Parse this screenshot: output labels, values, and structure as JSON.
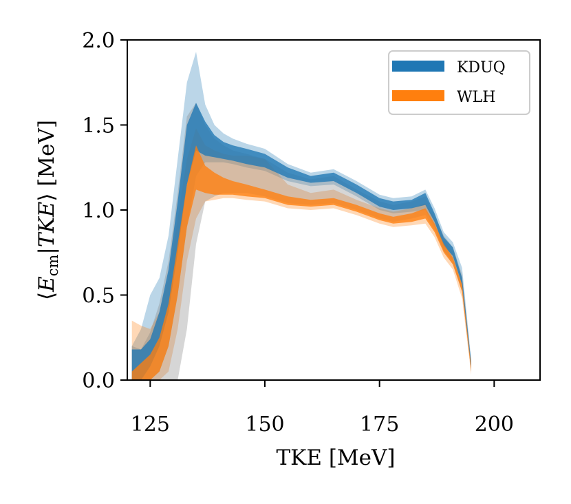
{
  "chart_data": {
    "type": "area",
    "title": "",
    "xlabel": "TKE [MeV]",
    "ylabel": "⟨E_cm|TKE⟩ [MeV]",
    "ylabel_parts": {
      "open": "⟨",
      "var": "E",
      "sub": "cm",
      "bar": "|",
      "cond": "TKE",
      "close": "⟩",
      "unit": " [MeV]"
    },
    "xlim": [
      120,
      210
    ],
    "ylim": [
      0.0,
      2.0
    ],
    "xticks": [
      125,
      150,
      175,
      200
    ],
    "yticks": [
      0.0,
      0.5,
      1.0,
      1.5,
      2.0
    ],
    "xtick_labels": [
      "125",
      "150",
      "175",
      "200"
    ],
    "ytick_labels": [
      "0.0",
      "0.5",
      "1.0",
      "1.5",
      "2.0"
    ],
    "legend_position": "top-right",
    "series": [
      {
        "name": "KDUQ",
        "color": "#1f77b4",
        "x": [
          121,
          123,
          125,
          127,
          129,
          131,
          133,
          135,
          137,
          139,
          141,
          143,
          146,
          150,
          155,
          160,
          165,
          170,
          175,
          178,
          182,
          185,
          187,
          189,
          191,
          193,
          195
        ],
        "inner_upper": [
          0.18,
          0.18,
          0.24,
          0.4,
          0.65,
          1.05,
          1.5,
          1.63,
          1.52,
          1.44,
          1.4,
          1.38,
          1.36,
          1.33,
          1.25,
          1.2,
          1.22,
          1.15,
          1.07,
          1.05,
          1.06,
          1.1,
          0.98,
          0.84,
          0.78,
          0.6,
          0.1
        ],
        "inner_lower": [
          0.0,
          0.0,
          0.08,
          0.2,
          0.4,
          0.75,
          1.15,
          1.35,
          1.32,
          1.31,
          1.3,
          1.29,
          1.27,
          1.25,
          1.19,
          1.16,
          1.17,
          1.1,
          1.02,
          1.0,
          1.01,
          1.03,
          0.93,
          0.79,
          0.73,
          0.56,
          0.06
        ],
        "outer_upper": [
          0.2,
          0.3,
          0.5,
          0.6,
          0.85,
          1.3,
          1.75,
          1.93,
          1.62,
          1.5,
          1.45,
          1.42,
          1.39,
          1.36,
          1.27,
          1.22,
          1.24,
          1.17,
          1.09,
          1.07,
          1.08,
          1.12,
          1.01,
          0.87,
          0.81,
          0.66,
          0.12
        ],
        "outer_lower": [
          0.0,
          0.0,
          0.0,
          0.05,
          0.2,
          0.5,
          0.9,
          1.2,
          1.28,
          1.28,
          1.28,
          1.27,
          1.25,
          1.23,
          1.17,
          1.14,
          1.15,
          1.08,
          1.0,
          0.98,
          0.99,
          1.0,
          0.9,
          0.76,
          0.7,
          0.52,
          0.05
        ]
      },
      {
        "name": "WLH",
        "color": "#ff7f0e",
        "x": [
          121,
          123,
          125,
          127,
          129,
          131,
          133,
          135,
          137,
          139,
          141,
          143,
          146,
          150,
          155,
          160,
          165,
          170,
          175,
          178,
          182,
          185,
          187,
          189,
          191,
          193,
          195
        ],
        "inner_upper": [
          0.05,
          0.1,
          0.15,
          0.25,
          0.45,
          0.8,
          1.15,
          1.38,
          1.26,
          1.22,
          1.19,
          1.17,
          1.15,
          1.12,
          1.08,
          1.06,
          1.07,
          1.03,
          0.98,
          0.96,
          0.98,
          1.01,
          0.92,
          0.8,
          0.72,
          0.56,
          0.08
        ],
        "inner_lower": [
          0.0,
          0.0,
          0.0,
          0.05,
          0.2,
          0.5,
          0.9,
          1.12,
          1.1,
          1.09,
          1.09,
          1.09,
          1.08,
          1.07,
          1.03,
          1.02,
          1.03,
          0.99,
          0.94,
          0.92,
          0.93,
          0.95,
          0.87,
          0.75,
          0.68,
          0.52,
          0.05
        ],
        "outer_upper": [
          0.35,
          0.32,
          0.3,
          0.4,
          0.6,
          0.95,
          1.3,
          1.48,
          1.38,
          1.35,
          1.33,
          1.32,
          1.32,
          1.3,
          1.15,
          1.1,
          1.12,
          1.06,
          1.01,
          0.99,
          1.01,
          1.04,
          0.95,
          0.83,
          0.75,
          0.6,
          0.1
        ],
        "outer_lower": [
          0.0,
          0.0,
          0.0,
          0.0,
          0.05,
          0.3,
          0.7,
          0.95,
          1.05,
          1.06,
          1.07,
          1.07,
          1.06,
          1.05,
          1.01,
          1.0,
          1.01,
          0.97,
          0.92,
          0.9,
          0.91,
          0.92,
          0.84,
          0.72,
          0.65,
          0.48,
          0.03
        ]
      }
    ],
    "grey_envelope": {
      "color": "#808080",
      "x": [
        121,
        123,
        125,
        127,
        129,
        131,
        133,
        135,
        137,
        139,
        141,
        143,
        146,
        150,
        155,
        160,
        165,
        170,
        175,
        178,
        182,
        185,
        187,
        189,
        191,
        193,
        195
      ],
      "upper": [
        0.2,
        0.18,
        0.28,
        0.45,
        0.7,
        1.1,
        1.55,
        1.63,
        1.5,
        1.42,
        1.38,
        1.35,
        1.33,
        1.3,
        1.22,
        1.18,
        1.2,
        1.12,
        1.05,
        1.03,
        1.05,
        1.08,
        0.97,
        0.85,
        0.78,
        0.62,
        0.1
      ],
      "lower": [
        0.0,
        0.0,
        0.0,
        0.0,
        0.0,
        0.0,
        0.3,
        0.8,
        1.05,
        1.08,
        1.1,
        1.1,
        1.1,
        1.08,
        1.04,
        1.03,
        1.04,
        1.0,
        0.95,
        0.93,
        0.95,
        0.97,
        0.88,
        0.76,
        0.68,
        0.52,
        0.05
      ]
    }
  }
}
